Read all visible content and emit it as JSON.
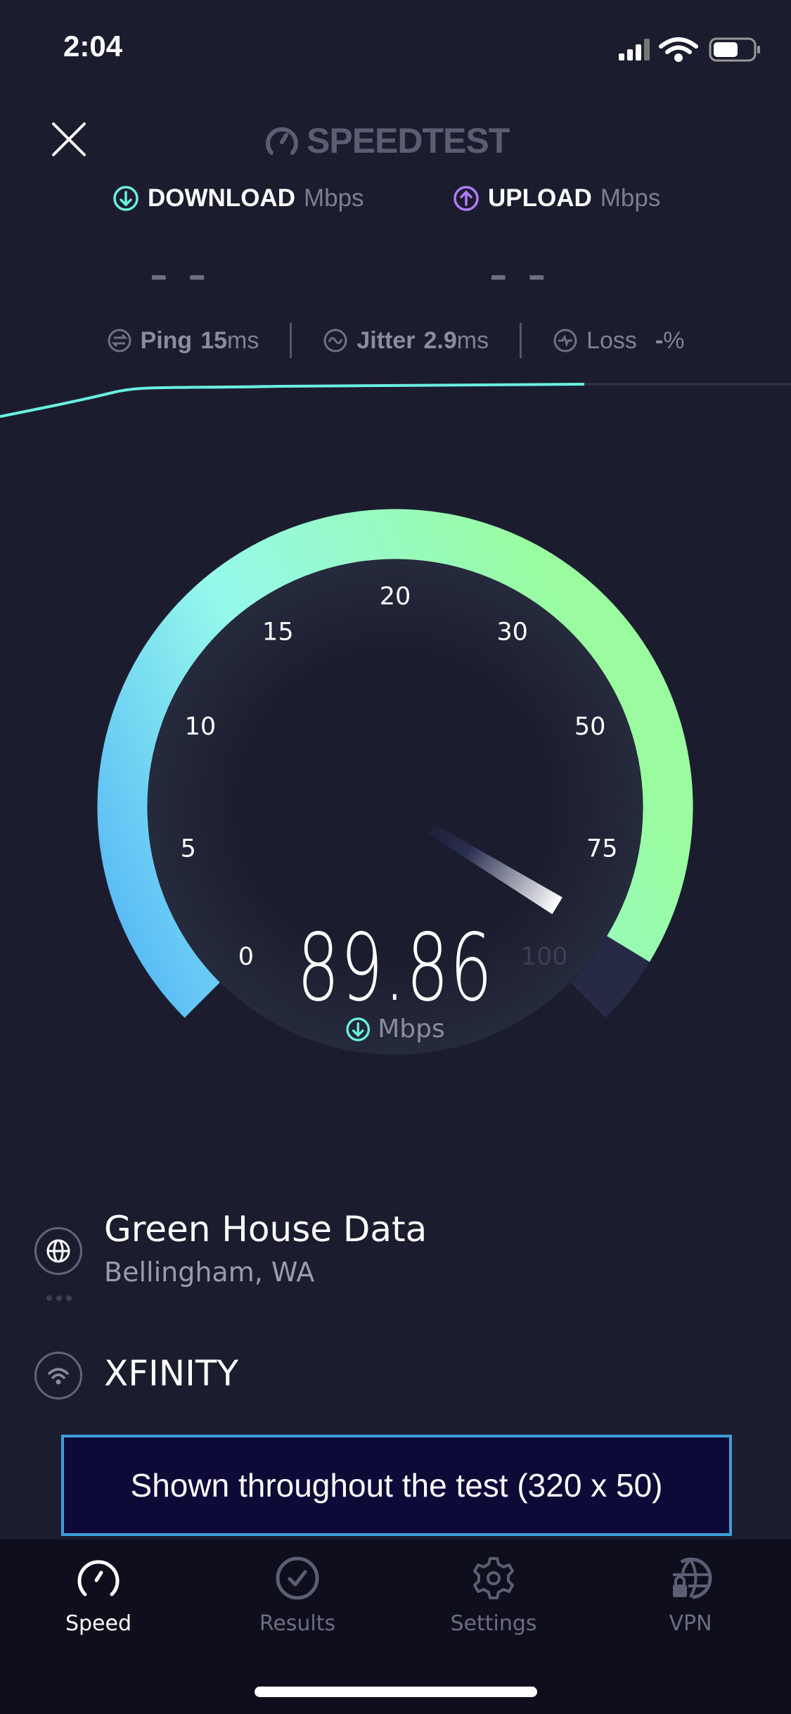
{
  "status_bar": {
    "time": "2:04",
    "icons": [
      "cellular-signal-icon",
      "wifi-icon",
      "battery-icon"
    ]
  },
  "header": {
    "logo_text": "SPEEDTEST",
    "close_icon": "close-icon"
  },
  "download": {
    "label": "DOWNLOAD",
    "unit": "Mbps",
    "value": "– –",
    "color": "#6af0e0"
  },
  "upload": {
    "label": "UPLOAD",
    "unit": "Mbps",
    "value": "– –",
    "color": "#b27cf7"
  },
  "stats": {
    "ping": {
      "label": "Ping",
      "value": "15",
      "unit": "ms"
    },
    "jitter": {
      "label": "Jitter",
      "value": "2.9",
      "unit": "ms"
    },
    "loss": {
      "label": "Loss",
      "value": "-",
      "unit": "%"
    }
  },
  "gauge": {
    "ticks": [
      "0",
      "5",
      "10",
      "15",
      "20",
      "30",
      "50",
      "75",
      "100"
    ],
    "value": 89.86,
    "value_text": "89.86",
    "unit": "Mbps",
    "colors": {
      "start": "#53b4f7",
      "mid": "#95f9ec",
      "end": "#9afc9e",
      "track": "#262a45"
    }
  },
  "server": {
    "name": "Green House Data",
    "location": "Bellingham, WA"
  },
  "isp": {
    "name": "XFINITY"
  },
  "ad": {
    "text": "Shown throughout the test (320 x 50)"
  },
  "tabs": [
    {
      "label": "Speed",
      "icon": "speedometer-icon",
      "active": true
    },
    {
      "label": "Results",
      "icon": "check-circle-icon",
      "active": false
    },
    {
      "label": "Settings",
      "icon": "gear-icon",
      "active": false
    },
    {
      "label": "VPN",
      "icon": "vpn-globe-lock-icon",
      "active": false
    }
  ]
}
